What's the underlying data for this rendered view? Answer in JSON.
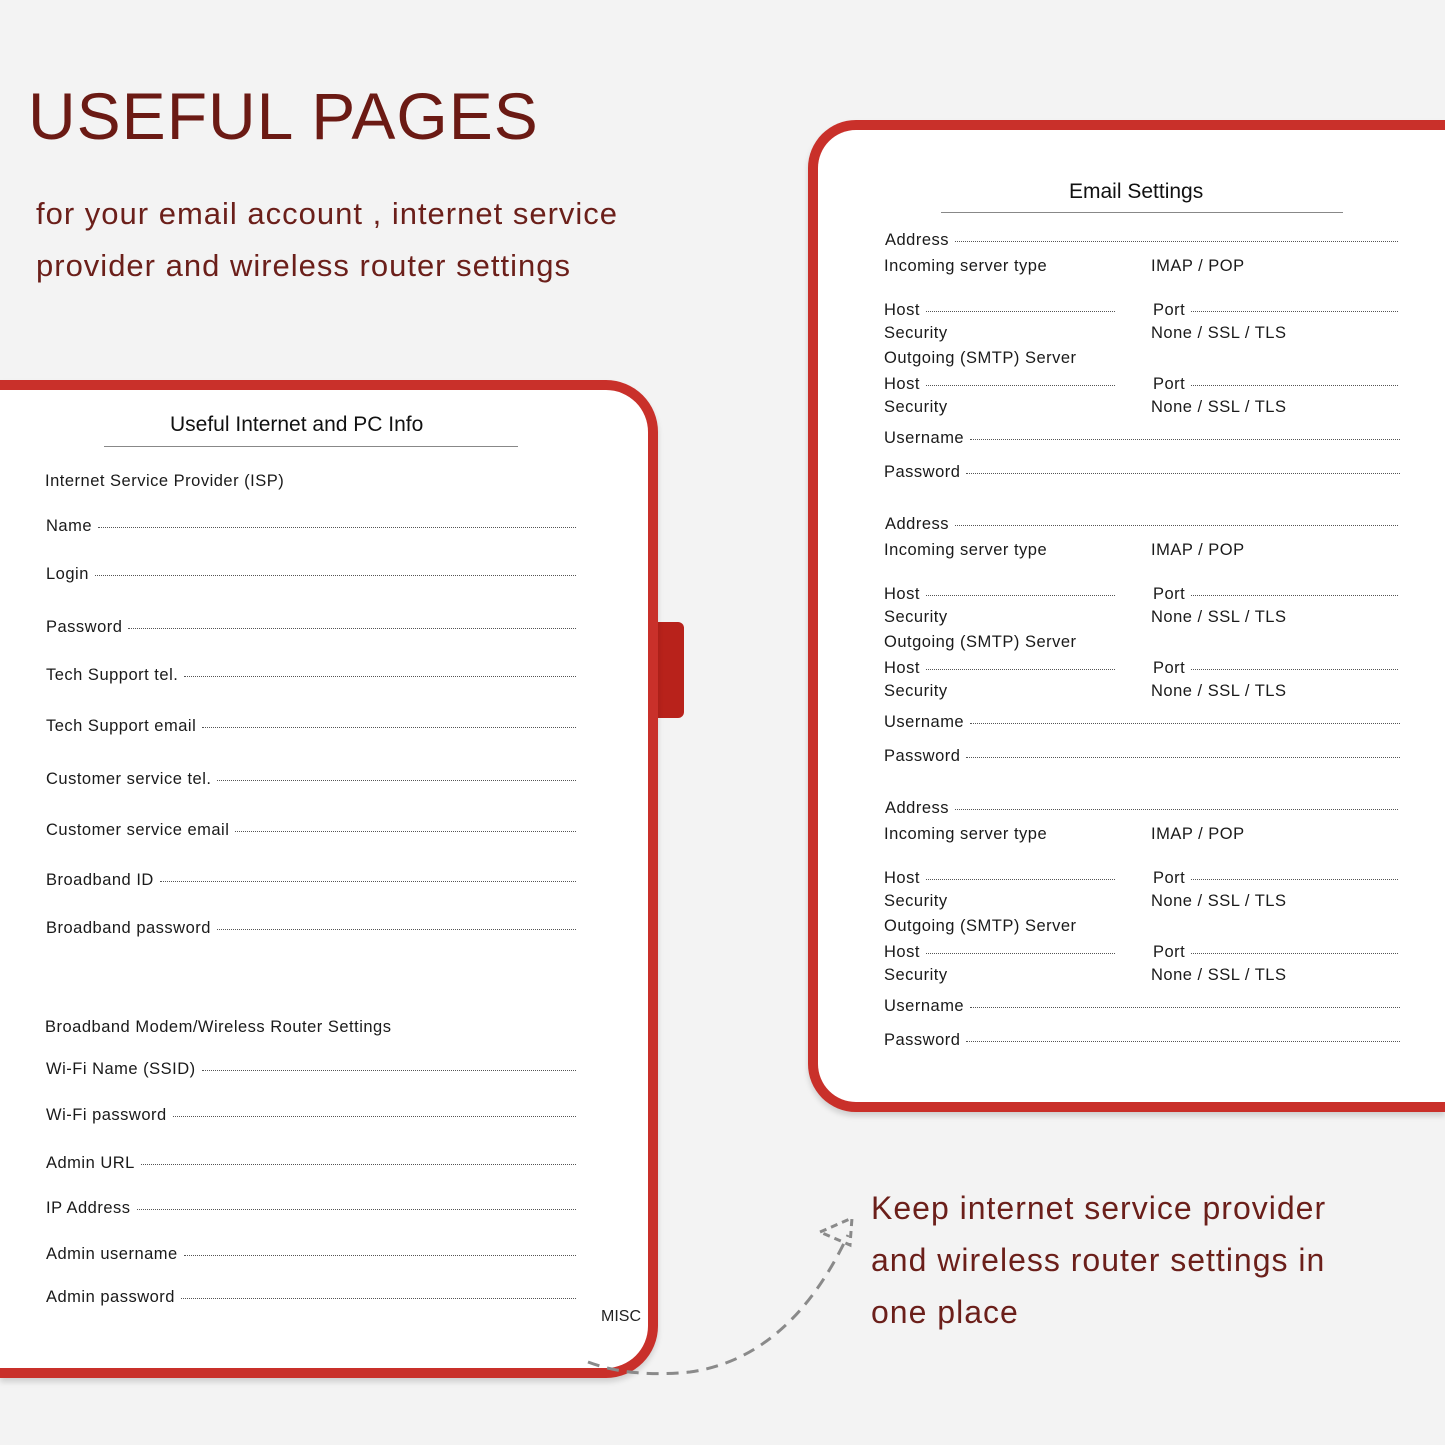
{
  "header": {
    "title": "USEFUL PAGES",
    "subtitle_lines": [
      "for your email account , internet service",
      "provider and wireless router settings"
    ]
  },
  "caption": {
    "lines": [
      "Keep internet service provider",
      "and wireless router settings in",
      "one place"
    ]
  },
  "colors": {
    "title": "#6b1a14",
    "cover": "#c9302a",
    "background": "#f3f3f3"
  },
  "left_page": {
    "title": "Useful Internet and PC Info",
    "section1": "Internet Service Provider  (ISP)",
    "fields1": [
      "Name",
      "Login",
      "Password",
      "Tech Support tel.",
      "Tech Support email",
      "Customer service tel.",
      "Customer service email",
      "Broadband ID",
      "Broadband password"
    ],
    "section2": "Broadband Modem/Wireless Router Settings",
    "fields2": [
      "Wi-Fi Name (SSID)",
      "Wi-Fi password",
      "Admin URL",
      "IP Address",
      "Admin username",
      "Admin password"
    ],
    "tab_label": "MISC"
  },
  "right_page": {
    "title": "Email Settings",
    "labels": {
      "address": "Address",
      "incoming": "Incoming server type",
      "incoming_options": "IMAP  /  POP",
      "host": "Host",
      "port": "Port",
      "security": "Security",
      "security_options": "None  /  SSL  /  TLS",
      "outgoing": "Outgoing (SMTP) Server",
      "username": "Username",
      "password": "Password"
    },
    "block_count": 3
  }
}
